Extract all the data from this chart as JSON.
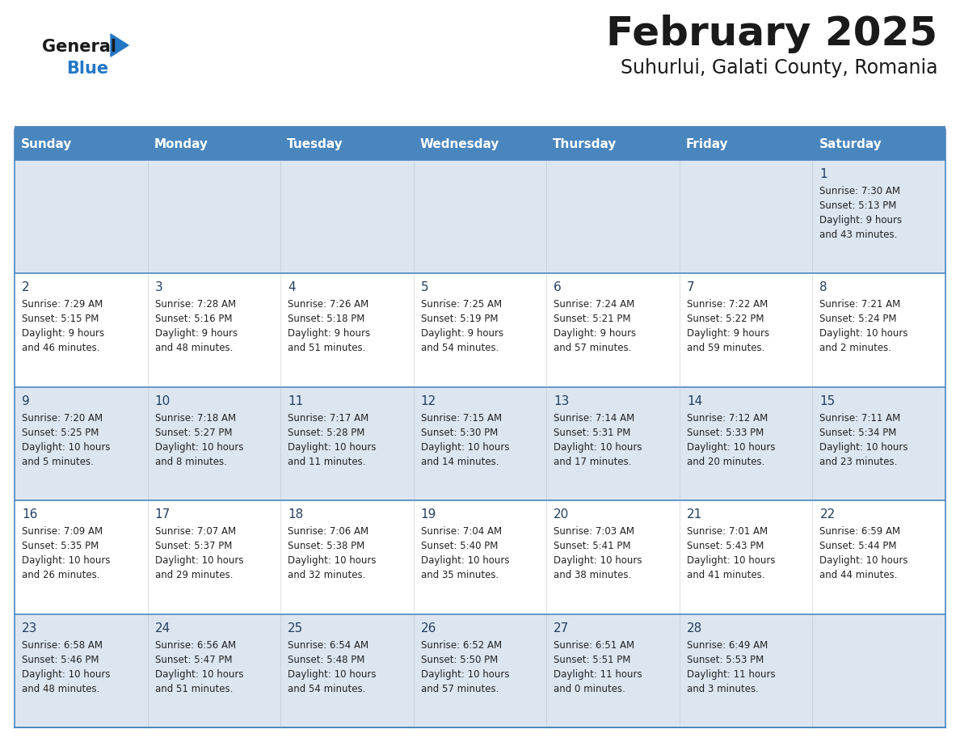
{
  "title": "February 2025",
  "subtitle": "Suhurlui, Galati County, Romania",
  "days_of_week": [
    "Sunday",
    "Monday",
    "Tuesday",
    "Wednesday",
    "Thursday",
    "Friday",
    "Saturday"
  ],
  "header_bg": "#4a86be",
  "header_text": "#ffffff",
  "row_bg_even": "#dce6f1",
  "row_bg_odd": "#ffffff",
  "cell_border": "#4a86be",
  "day_num_color": "#243f60",
  "info_text_color": "#222222",
  "logo_black": "#1a1a1a",
  "logo_blue": "#2477c5",
  "logo_triangle": "#2477c5",
  "title_color": "#1a1a1a",
  "calendar_data": [
    [
      null,
      null,
      null,
      null,
      null,
      null,
      {
        "day": 1,
        "sunrise": "7:30 AM",
        "sunset": "5:13 PM",
        "daylight": "9 hours",
        "daylight2": "and 43 minutes."
      }
    ],
    [
      {
        "day": 2,
        "sunrise": "7:29 AM",
        "sunset": "5:15 PM",
        "daylight": "9 hours",
        "daylight2": "and 46 minutes."
      },
      {
        "day": 3,
        "sunrise": "7:28 AM",
        "sunset": "5:16 PM",
        "daylight": "9 hours",
        "daylight2": "and 48 minutes."
      },
      {
        "day": 4,
        "sunrise": "7:26 AM",
        "sunset": "5:18 PM",
        "daylight": "9 hours",
        "daylight2": "and 51 minutes."
      },
      {
        "day": 5,
        "sunrise": "7:25 AM",
        "sunset": "5:19 PM",
        "daylight": "9 hours",
        "daylight2": "and 54 minutes."
      },
      {
        "day": 6,
        "sunrise": "7:24 AM",
        "sunset": "5:21 PM",
        "daylight": "9 hours",
        "daylight2": "and 57 minutes."
      },
      {
        "day": 7,
        "sunrise": "7:22 AM",
        "sunset": "5:22 PM",
        "daylight": "9 hours",
        "daylight2": "and 59 minutes."
      },
      {
        "day": 8,
        "sunrise": "7:21 AM",
        "sunset": "5:24 PM",
        "daylight": "10 hours",
        "daylight2": "and 2 minutes."
      }
    ],
    [
      {
        "day": 9,
        "sunrise": "7:20 AM",
        "sunset": "5:25 PM",
        "daylight": "10 hours",
        "daylight2": "and 5 minutes."
      },
      {
        "day": 10,
        "sunrise": "7:18 AM",
        "sunset": "5:27 PM",
        "daylight": "10 hours",
        "daylight2": "and 8 minutes."
      },
      {
        "day": 11,
        "sunrise": "7:17 AM",
        "sunset": "5:28 PM",
        "daylight": "10 hours",
        "daylight2": "and 11 minutes."
      },
      {
        "day": 12,
        "sunrise": "7:15 AM",
        "sunset": "5:30 PM",
        "daylight": "10 hours",
        "daylight2": "and 14 minutes."
      },
      {
        "day": 13,
        "sunrise": "7:14 AM",
        "sunset": "5:31 PM",
        "daylight": "10 hours",
        "daylight2": "and 17 minutes."
      },
      {
        "day": 14,
        "sunrise": "7:12 AM",
        "sunset": "5:33 PM",
        "daylight": "10 hours",
        "daylight2": "and 20 minutes."
      },
      {
        "day": 15,
        "sunrise": "7:11 AM",
        "sunset": "5:34 PM",
        "daylight": "10 hours",
        "daylight2": "and 23 minutes."
      }
    ],
    [
      {
        "day": 16,
        "sunrise": "7:09 AM",
        "sunset": "5:35 PM",
        "daylight": "10 hours",
        "daylight2": "and 26 minutes."
      },
      {
        "day": 17,
        "sunrise": "7:07 AM",
        "sunset": "5:37 PM",
        "daylight": "10 hours",
        "daylight2": "and 29 minutes."
      },
      {
        "day": 18,
        "sunrise": "7:06 AM",
        "sunset": "5:38 PM",
        "daylight": "10 hours",
        "daylight2": "and 32 minutes."
      },
      {
        "day": 19,
        "sunrise": "7:04 AM",
        "sunset": "5:40 PM",
        "daylight": "10 hours",
        "daylight2": "and 35 minutes."
      },
      {
        "day": 20,
        "sunrise": "7:03 AM",
        "sunset": "5:41 PM",
        "daylight": "10 hours",
        "daylight2": "and 38 minutes."
      },
      {
        "day": 21,
        "sunrise": "7:01 AM",
        "sunset": "5:43 PM",
        "daylight": "10 hours",
        "daylight2": "and 41 minutes."
      },
      {
        "day": 22,
        "sunrise": "6:59 AM",
        "sunset": "5:44 PM",
        "daylight": "10 hours",
        "daylight2": "and 44 minutes."
      }
    ],
    [
      {
        "day": 23,
        "sunrise": "6:58 AM",
        "sunset": "5:46 PM",
        "daylight": "10 hours",
        "daylight2": "and 48 minutes."
      },
      {
        "day": 24,
        "sunrise": "6:56 AM",
        "sunset": "5:47 PM",
        "daylight": "10 hours",
        "daylight2": "and 51 minutes."
      },
      {
        "day": 25,
        "sunrise": "6:54 AM",
        "sunset": "5:48 PM",
        "daylight": "10 hours",
        "daylight2": "and 54 minutes."
      },
      {
        "day": 26,
        "sunrise": "6:52 AM",
        "sunset": "5:50 PM",
        "daylight": "10 hours",
        "daylight2": "and 57 minutes."
      },
      {
        "day": 27,
        "sunrise": "6:51 AM",
        "sunset": "5:51 PM",
        "daylight": "11 hours",
        "daylight2": "and 0 minutes."
      },
      {
        "day": 28,
        "sunrise": "6:49 AM",
        "sunset": "5:53 PM",
        "daylight": "11 hours",
        "daylight2": "and 3 minutes."
      },
      null
    ]
  ]
}
